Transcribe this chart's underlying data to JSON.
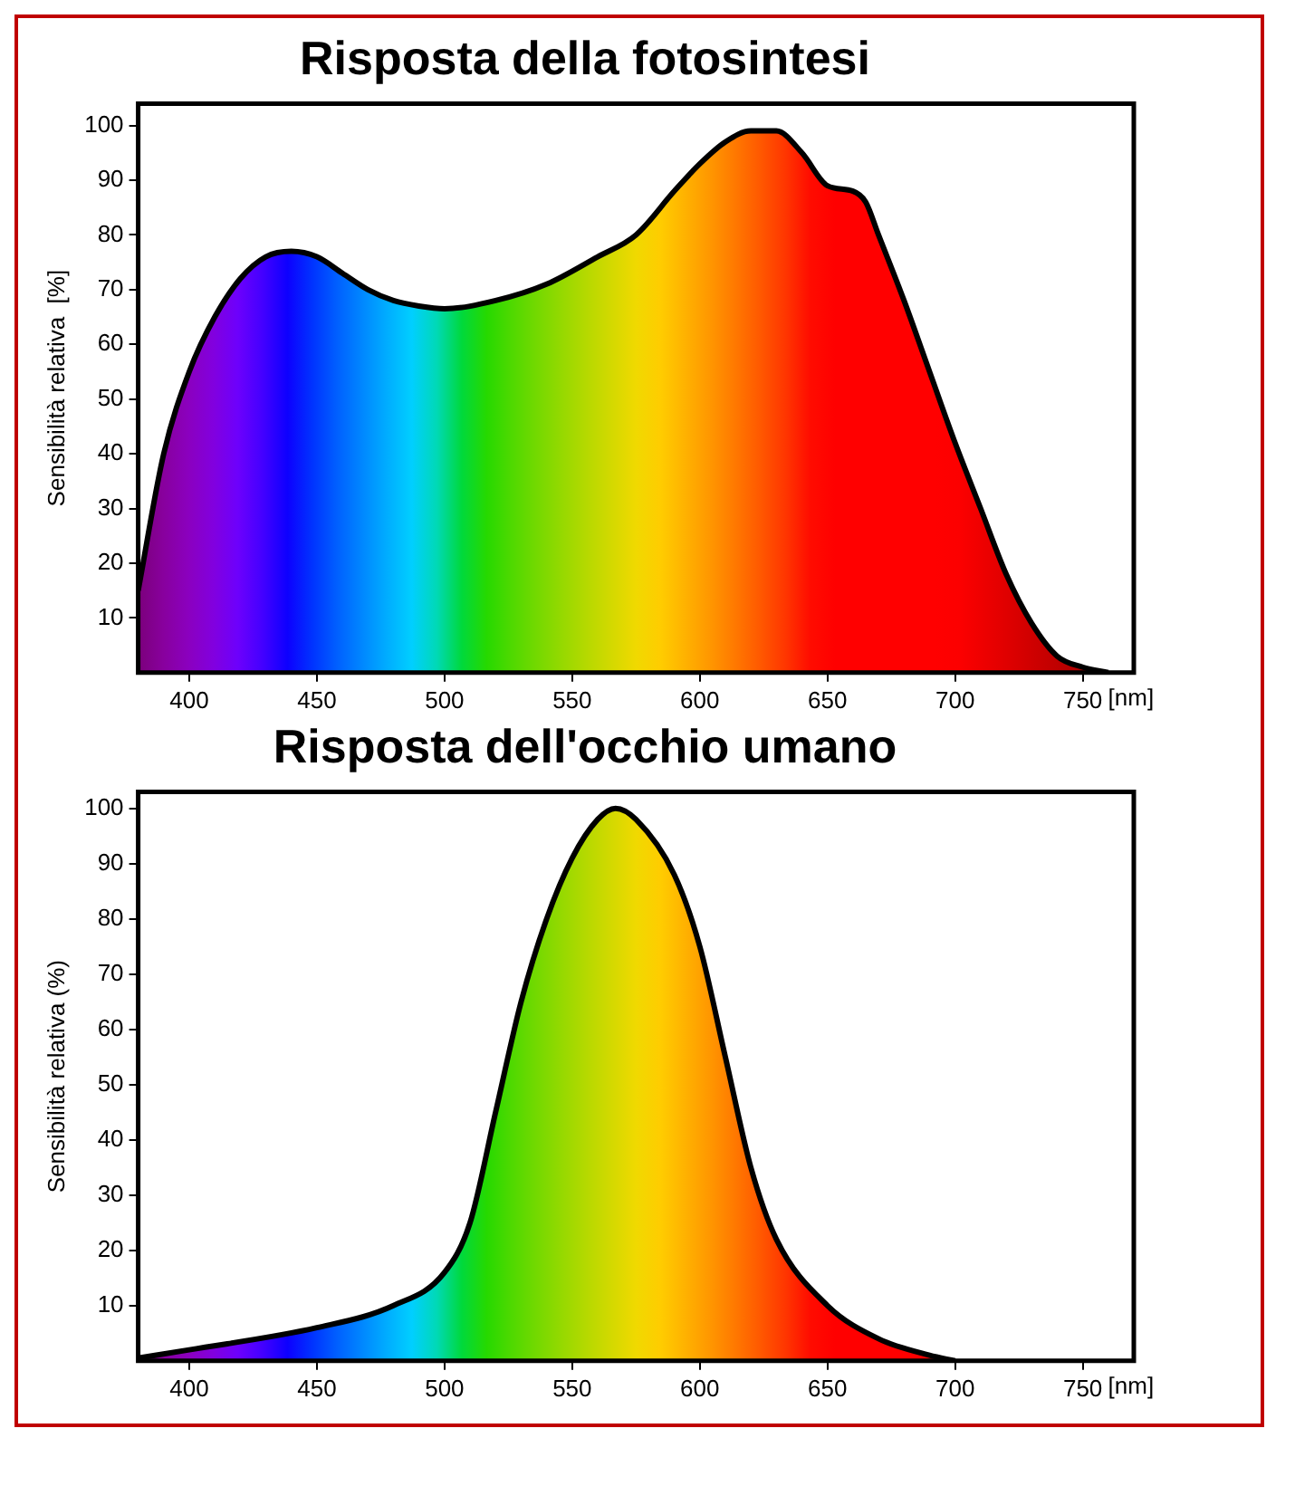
{
  "chart_data": [
    {
      "type": "area",
      "title": "Risposta della fotosintesi",
      "ylabel": "Sensibilità relativa  [%]",
      "xlabel": "[nm]",
      "color": "#000000",
      "x": [
        380,
        390,
        400,
        410,
        420,
        430,
        440,
        450,
        460,
        470,
        480,
        490,
        500,
        520,
        540,
        560,
        575,
        590,
        600,
        610,
        620,
        630,
        640,
        650,
        660,
        665,
        670,
        680,
        690,
        700,
        710,
        720,
        730,
        740,
        750,
        760
      ],
      "values": [
        15,
        40,
        55,
        65,
        72,
        76,
        77,
        76,
        73,
        70,
        68,
        67,
        66.5,
        68,
        71,
        76,
        80,
        88,
        93,
        97,
        99,
        99,
        95,
        89,
        88,
        86,
        80,
        68,
        55,
        42,
        30,
        18,
        9,
        3,
        1,
        0
      ],
      "xlim": [
        380,
        770
      ],
      "ylim": [
        0,
        104
      ],
      "xticks": [
        400,
        450,
        500,
        550,
        600,
        650,
        700,
        750
      ],
      "yticks": [
        10,
        20,
        30,
        40,
        50,
        60,
        70,
        80,
        90,
        100
      ],
      "grid": false,
      "legend": false
    },
    {
      "type": "area",
      "title": "Risposta dell'occhio umano",
      "ylabel": "Sensibilità relativa (%)",
      "xlabel": "[nm]",
      "color": "#000000",
      "x": [
        380,
        400,
        450,
        480,
        500,
        510,
        520,
        530,
        540,
        550,
        560,
        567,
        575,
        590,
        600,
        610,
        620,
        630,
        650,
        670,
        690,
        700
      ],
      "values": [
        0.5,
        2,
        6,
        10,
        16,
        25,
        45,
        65,
        80,
        91,
        98,
        100,
        98,
        88,
        75,
        55,
        35,
        22,
        10,
        4,
        1,
        0
      ],
      "xlim": [
        380,
        770
      ],
      "ylim": [
        0,
        103
      ],
      "xticks": [
        400,
        450,
        500,
        550,
        600,
        650,
        700,
        750
      ],
      "yticks": [
        10,
        20,
        30,
        40,
        50,
        60,
        70,
        80,
        90,
        100
      ],
      "grid": false,
      "legend": false
    }
  ]
}
